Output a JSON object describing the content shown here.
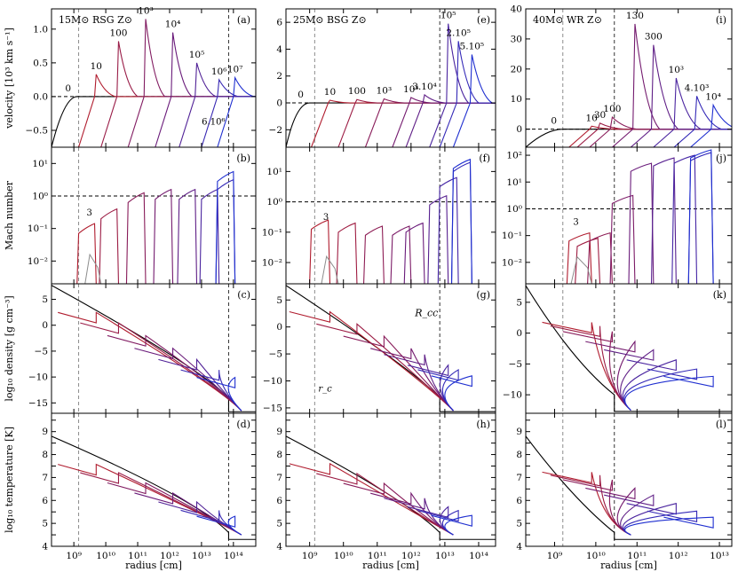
{
  "chart_data": {
    "type": "line",
    "xlabel": "radius [cm]",
    "ylabels": [
      "velocity [10³ km s⁻¹]",
      "Mach number",
      "log₁₀ density [g cm⁻³]",
      "log₁₀ temperature [K]"
    ],
    "colors": {
      "early": "#b01c2e",
      "mid": "#6a1b7a",
      "late": "#1f2fd0",
      "init": "#000000",
      "ref": "#8c8c8c"
    },
    "columns": [
      {
        "title": "15M⊙ RSG Z⊙",
        "xlog": [
          8.3,
          14.7
        ],
        "xticks": [
          9,
          10,
          11,
          12,
          13,
          14
        ],
        "xticklabels": [
          "10⁹",
          "10¹⁰",
          "10¹¹",
          "10¹²",
          "10¹³",
          "10¹⁴"
        ],
        "rc_log": 9.15,
        "rcc_log": 13.85,
        "panel_labels": [
          "(a)",
          "(b)",
          "(c)",
          "(d)"
        ],
        "vel": {
          "ylim": [
            -0.75,
            1.3
          ],
          "yticks": [
            -0.5,
            0.0,
            0.5,
            1.0
          ],
          "yticklabels": [
            "−0.5",
            "0.0",
            "0.5",
            "1.0"
          ]
        },
        "vel_shocks": [
          {
            "label": "0",
            "x": 9.1,
            "peak": 0.0
          },
          {
            "label": "10",
            "x": 9.7,
            "peak": 0.33
          },
          {
            "label": "100",
            "x": 10.4,
            "peak": 0.82
          },
          {
            "label": "10³",
            "x": 11.25,
            "peak": 1.15
          },
          {
            "label": "10⁴",
            "x": 12.1,
            "peak": 0.95
          },
          {
            "label": "10⁵",
            "x": 12.85,
            "peak": 0.5
          },
          {
            "label": "10⁶",
            "x": 13.55,
            "peak": 0.25
          },
          {
            "label": "10⁷",
            "x": 14.05,
            "peak": 0.28
          }
        ],
        "vel_tail_label": "6.10⁶",
        "mach": {
          "ylim_log": [
            -2.7,
            1.5
          ],
          "yticks": [
            -2,
            -1,
            0,
            1
          ],
          "yticklabels": [
            "10⁻²",
            "10⁻¹",
            "10⁰",
            "10¹"
          ],
          "peaks": [
            -0.85,
            -0.4,
            0.1,
            0.2,
            0.2,
            0.2,
            0.5,
            0.75
          ]
        },
        "dens": {
          "ylim": [
            -17,
            8
          ],
          "yticks": [
            -15,
            -10,
            -5,
            0,
            5
          ],
          "yticklabels": [
            "−15",
            "−10",
            "−5",
            "0",
            "5"
          ]
        },
        "temp": {
          "ylim": [
            4,
            9.8
          ],
          "yticks": [
            4,
            4.5,
            5,
            5.5,
            6,
            6.5,
            7,
            7.5,
            8,
            8.5,
            9,
            9.5
          ],
          "yticklabels": [
            "4",
            "",
            "5",
            "",
            "6",
            "",
            "7",
            "",
            "8",
            "",
            "9",
            ""
          ]
        }
      },
      {
        "title": "25M⊙ BSG Z⊙",
        "xlog": [
          8.3,
          14.5
        ],
        "xticks": [
          9,
          10,
          11,
          12,
          13,
          14
        ],
        "xticklabels": [
          "10⁹",
          "10¹⁰",
          "10¹¹",
          "10¹²",
          "10¹³",
          "10¹⁴"
        ],
        "rc_log": 9.15,
        "rcc_log": 12.85,
        "panel_labels": [
          "(e)",
          "(f)",
          "(g)",
          "(h)"
        ],
        "vel": {
          "ylim": [
            -3.3,
            7.0
          ],
          "yticks": [
            -2,
            0,
            2,
            4,
            6
          ],
          "yticklabels": [
            "−2",
            "0",
            "2",
            "4",
            "6"
          ]
        },
        "vel_shocks": [
          {
            "label": "0",
            "x": 9.0,
            "peak": 0.0
          },
          {
            "label": "10",
            "x": 9.6,
            "peak": 0.2
          },
          {
            "label": "100",
            "x": 10.4,
            "peak": 0.25
          },
          {
            "label": "10³",
            "x": 11.2,
            "peak": 0.3
          },
          {
            "label": "10⁴",
            "x": 12.0,
            "peak": 0.4
          },
          {
            "label": "3.10⁴",
            "x": 12.4,
            "peak": 0.6
          },
          {
            "label": "10⁵",
            "x": 13.1,
            "peak": 5.9
          },
          {
            "label": "2.10⁵",
            "x": 13.4,
            "peak": 4.6
          },
          {
            "label": "5.10⁵",
            "x": 13.8,
            "peak": 3.6
          }
        ],
        "vel_tail_label": "",
        "mach": {
          "ylim_log": [
            -2.7,
            1.8
          ],
          "yticks": [
            -2,
            -1,
            0,
            1
          ],
          "yticklabels": [
            "10⁻²",
            "10⁻¹",
            "10⁰",
            "10¹"
          ],
          "peaks": [
            -0.6,
            -0.7,
            -0.8,
            -0.8,
            -0.7,
            0.2,
            0.8,
            1.3,
            1.4
          ]
        },
        "dens": {
          "ylim": [
            -16,
            8
          ],
          "yticks": [
            -15,
            -10,
            -5,
            0,
            5
          ],
          "yticklabels": [
            "−15",
            "−10",
            "−5",
            "0",
            "5"
          ]
        },
        "temp": {
          "ylim": [
            4,
            9.8
          ],
          "yticks": [
            4,
            4.5,
            5,
            5.5,
            6,
            6.5,
            7,
            7.5,
            8,
            8.5,
            9,
            9.5
          ],
          "yticklabels": [
            "4",
            "",
            "5",
            "",
            "6",
            "",
            "7",
            "",
            "8",
            "",
            "9",
            ""
          ]
        }
      },
      {
        "title": "40M⊙ WR Z⊙",
        "xlog": [
          8.3,
          13.3
        ],
        "xticks": [
          9,
          10,
          11,
          12,
          13
        ],
        "xticklabels": [
          "10⁹",
          "10¹⁰",
          "10¹¹",
          "10¹²",
          "10¹³"
        ],
        "rc_log": 9.2,
        "rcc_log": 10.45,
        "panel_labels": [
          "(i)",
          "(j)",
          "(k)",
          "(l)"
        ],
        "vel": {
          "ylim": [
            -6,
            40
          ],
          "yticks": [
            0,
            10,
            20,
            30,
            40
          ],
          "yticklabels": [
            "0",
            "10",
            "20",
            "30",
            "40"
          ]
        },
        "vel_shocks": [
          {
            "label": "0",
            "x": 9.2,
            "peak": 0.0
          },
          {
            "label": "10",
            "x": 9.9,
            "peak": 1.0
          },
          {
            "label": "30",
            "x": 10.1,
            "peak": 2.0
          },
          {
            "label": "100",
            "x": 10.4,
            "peak": 4.0
          },
          {
            "label": "130",
            "x": 10.95,
            "peak": 35.0
          },
          {
            "label": "300",
            "x": 11.4,
            "peak": 28.0
          },
          {
            "label": "10³",
            "x": 11.95,
            "peak": 17.0
          },
          {
            "label": "4.10³",
            "x": 12.45,
            "peak": 11.0
          },
          {
            "label": "10⁴",
            "x": 12.85,
            "peak": 8.0
          }
        ],
        "vel_tail_label": "",
        "mach": {
          "ylim_log": [
            -2.8,
            2.3
          ],
          "yticks": [
            -2,
            -1,
            0,
            1,
            2
          ],
          "yticklabels": [
            "10⁻²",
            "10⁻¹",
            "10⁰",
            "10¹",
            "10²"
          ],
          "peaks": [
            -0.9,
            -1.1,
            -0.9,
            0.5,
            1.7,
            1.9,
            2.0,
            2.1,
            2.2
          ]
        },
        "dens": {
          "ylim": [
            -13,
            8
          ],
          "yticks": [
            -10,
            -5,
            0,
            5
          ],
          "yticklabels": [
            "−10",
            "−5",
            "0",
            "5"
          ]
        },
        "temp": {
          "ylim": [
            4,
            9.8
          ],
          "yticks": [
            4,
            4.5,
            5,
            5.5,
            6,
            6.5,
            7,
            7.5,
            8,
            8.5,
            9,
            9.5
          ],
          "yticklabels": [
            "4",
            "",
            "5",
            "",
            "6",
            "",
            "7",
            "",
            "8",
            "",
            "9",
            ""
          ]
        }
      }
    ],
    "annotations": {
      "mach_ref": "3",
      "rcc": "R_cc",
      "rc": "r_c"
    }
  }
}
